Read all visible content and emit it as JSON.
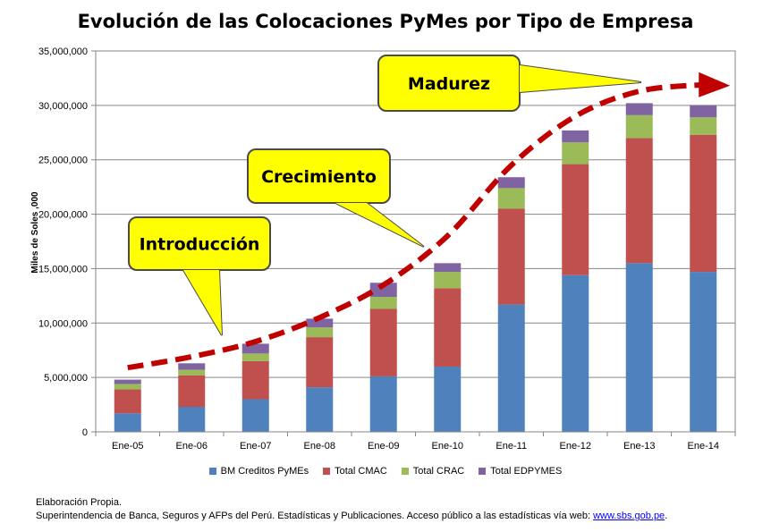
{
  "chart_data": {
    "type": "bar",
    "stacked": true,
    "title": "Evolución de las Colocaciones PyMes por Tipo de Empresa",
    "ylabel": "Miles de Soles ,000",
    "xlabel": "",
    "ylim": [
      0,
      35000000
    ],
    "yticks": [
      0,
      5000000,
      10000000,
      15000000,
      20000000,
      25000000,
      30000000,
      35000000
    ],
    "ytick_labels": [
      "0",
      "5,000,000",
      "10,000,000",
      "15,000,000",
      "20,000,000",
      "25,000,000",
      "30,000,000",
      "35,000,000"
    ],
    "grid": true,
    "legend_position": "bottom",
    "categories": [
      "Ene-05",
      "Ene-06",
      "Ene-07",
      "Ene-08",
      "Ene-09",
      "Ene-10",
      "Ene-11",
      "Ene-12",
      "Ene-13",
      "Ene-14"
    ],
    "series": [
      {
        "name": "BM Creditos PyMEs",
        "color": "#4f81bd",
        "values": [
          1700000,
          2300000,
          3000000,
          4100000,
          5100000,
          6000000,
          11700000,
          14400000,
          15500000,
          14700000
        ]
      },
      {
        "name": "Total CMAC",
        "color": "#c0504d",
        "values": [
          2200000,
          2900000,
          3500000,
          4600000,
          6200000,
          7200000,
          8800000,
          10200000,
          11500000,
          12600000
        ]
      },
      {
        "name": "Total CRAC",
        "color": "#9bbb59",
        "values": [
          500000,
          500000,
          700000,
          900000,
          1100000,
          1500000,
          1900000,
          2000000,
          2100000,
          1600000
        ]
      },
      {
        "name": "Total EDPYMES",
        "color": "#8064a2",
        "values": [
          400000,
          600000,
          900000,
          800000,
          1300000,
          800000,
          1000000,
          1100000,
          1100000,
          1100000
        ]
      }
    ],
    "annotations": [
      {
        "text": "Introducción",
        "fill": "#ffff00"
      },
      {
        "text": "Crecimiento",
        "fill": "#ffff00"
      },
      {
        "text": "Madurez",
        "fill": "#ffff00"
      }
    ],
    "trend_line": {
      "color": "#c00000",
      "style": "dashed",
      "arrow": true,
      "x": [
        "Ene-05",
        "Ene-06",
        "Ene-07",
        "Ene-08",
        "Ene-09",
        "Ene-10",
        "Ene-11",
        "Ene-12",
        "Ene-13",
        "Ene-14"
      ],
      "values": [
        5900000,
        6900000,
        8300000,
        10500000,
        13500000,
        18000000,
        24500000,
        29000000,
        31300000,
        31900000
      ]
    }
  },
  "footnotes": {
    "line1": "Elaboración Propia.",
    "line2": "Superintendencia de Banca, Seguros y AFPs del Perú.  Estadísticas y Publicaciones. Acceso público a las estadísticas vía web: ",
    "link": "www.sbs.gob.pe",
    "line2_end": "."
  }
}
